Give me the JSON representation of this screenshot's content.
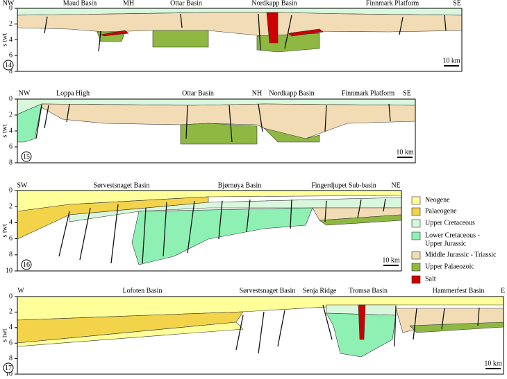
{
  "panels": [
    {
      "number": "14",
      "axis_label": "s twt",
      "ticks": [
        "0",
        "2",
        "4",
        "6",
        "8"
      ],
      "scale": "10 km",
      "labels": [
        "NW",
        "Maud  Basin",
        "MH",
        "Ottar Basin",
        "Nordkapp Basin",
        "Finnmark Platform",
        "SE"
      ]
    },
    {
      "number": "15",
      "axis_label": "s twt",
      "ticks": [
        "0",
        "2",
        "4",
        "6",
        "8"
      ],
      "scale": "10 km",
      "labels": [
        "NW",
        "Loppa High",
        "Ottar Basin",
        "NH",
        "Nordkapp Basin",
        "Finnmark Platform",
        "SE"
      ]
    },
    {
      "number": "16",
      "axis_label": "s twt",
      "ticks": [
        "0",
        "2",
        "4",
        "6",
        "8",
        "10"
      ],
      "scale": "10 km",
      "labels": [
        "SW",
        "Sørvestsnaget Basin",
        "Bjørnøya Basin",
        "Fingerdjupet Sub-basin",
        "NE"
      ]
    },
    {
      "number": "17",
      "axis_label": "s twt",
      "ticks": [
        "0",
        "2",
        "4",
        "6",
        "8",
        "10"
      ],
      "scale": "10 km",
      "labels": [
        "W",
        "Lofoten Basin",
        "Sørvestsnaget Basin",
        "Senja Ridge",
        "Tromsø Basin",
        "Hammerfest Basin",
        "E"
      ]
    }
  ],
  "legend": [
    {
      "lines": [
        "Neogene"
      ],
      "color": "#ffff99"
    },
    {
      "lines": [
        "Palaeogene"
      ],
      "color": "#f3d34a"
    },
    {
      "lines": [
        "Upper Cretaceous"
      ],
      "color": "#d9f7dc"
    },
    {
      "lines": [
        "Lower Cretaceous -",
        "Upper Jurassic"
      ],
      "color": "#8ff0b4"
    },
    {
      "lines": [
        "Middle Jurassic - Triassic"
      ],
      "color": "#f1dcb6"
    },
    {
      "lines": [
        "Upper Palaeozoic"
      ],
      "color": "#8fb842"
    },
    {
      "lines": [
        "Salt"
      ],
      "color": "#cc0000"
    }
  ]
}
